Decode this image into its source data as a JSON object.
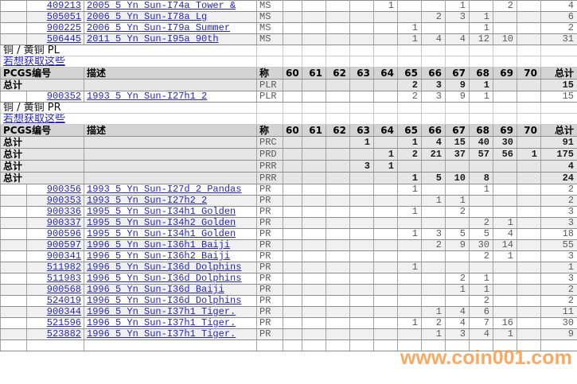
{
  "columns": {
    "pcgs_label": "PCGS编号",
    "desc_label": "描述",
    "grade_label": "称",
    "grades": [
      "60",
      "61",
      "62",
      "63",
      "64",
      "65",
      "66",
      "67",
      "68",
      "69",
      "70"
    ],
    "total_label": "总计"
  },
  "labels": {
    "subtotal": "总计"
  },
  "watermark": {
    "text": "www.coin001.com",
    "color": "#f79b4a"
  },
  "colors": {
    "link": "#2323cc",
    "header_bg": "#d4d4d4",
    "subtotal_bg": "#e6e6e6",
    "row_shade": "#f0f0f0"
  },
  "rows": [
    {
      "type": "data",
      "shade": false,
      "pcgs": "409213",
      "desc": "2005 5 Yn Sun-I74a Tower &",
      "grade": "MS",
      "vals": {
        "64": "1",
        "67": "1",
        "69": "2"
      },
      "total": "4"
    },
    {
      "type": "data",
      "shade": true,
      "pcgs": "505051",
      "desc": "2006 5 Yn Sun-I78a Lg",
      "grade": "MS",
      "vals": {
        "66": "2",
        "67": "3",
        "68": "1"
      },
      "total": "6"
    },
    {
      "type": "data",
      "shade": false,
      "pcgs": "900225",
      "desc": "2006 5 Yn Sun-I79a Summer",
      "grade": "MS",
      "vals": {
        "65": "1",
        "68": "1"
      },
      "total": "2"
    },
    {
      "type": "data",
      "shade": true,
      "pcgs": "506445",
      "desc": "2011 5 Yn Sun-I95a 90th",
      "grade": "MS",
      "vals": {
        "65": "1",
        "66": "4",
        "67": "4",
        "68": "12",
        "69": "10"
      },
      "total": "31"
    },
    {
      "type": "title",
      "text": "铜 / 黄铜  PL"
    },
    {
      "type": "link",
      "text": "若想获取这些"
    },
    {
      "type": "header"
    },
    {
      "type": "subtotal",
      "grade": "PLR",
      "vals": {
        "65": "2",
        "66": "3",
        "67": "9",
        "68": "1"
      },
      "total": "15"
    },
    {
      "type": "data",
      "shade": false,
      "pcgs": "900352",
      "desc": "1993 5 Yn Sun-I27h1 2",
      "grade": "PLR",
      "vals": {
        "65": "2",
        "66": "3",
        "67": "9",
        "68": "1"
      },
      "total": "15"
    },
    {
      "type": "title",
      "text": "铜 / 黄铜  PR"
    },
    {
      "type": "link",
      "text": "若想获取这些"
    },
    {
      "type": "header"
    },
    {
      "type": "subtotal",
      "grade": "PRC",
      "vals": {
        "63": "1",
        "65": "1",
        "66": "4",
        "67": "15",
        "68": "40",
        "69": "30"
      },
      "total": "91"
    },
    {
      "type": "subtotal",
      "grade": "PRD",
      "vals": {
        "64": "1",
        "65": "2",
        "66": "21",
        "67": "37",
        "68": "57",
        "69": "56",
        "70": "1"
      },
      "total": "175"
    },
    {
      "type": "subtotal",
      "grade": "PRR",
      "vals": {
        "63": "3",
        "64": "1"
      },
      "total": "4"
    },
    {
      "type": "subtotal",
      "grade": "PRR",
      "vals": {
        "65": "1",
        "66": "5",
        "67": "10",
        "68": "8"
      },
      "total": "24"
    },
    {
      "type": "data",
      "shade": false,
      "pcgs": "900356",
      "desc": "1993 5 Yn Sun-I27d 2 Pandas",
      "grade": "PR",
      "vals": {
        "65": "1",
        "68": "1"
      },
      "total": "2"
    },
    {
      "type": "data",
      "shade": true,
      "pcgs": "900353",
      "desc": "1993 5 Yn Sun-I27h2 2",
      "grade": "PR",
      "vals": {
        "66": "1",
        "67": "1"
      },
      "total": "2"
    },
    {
      "type": "data",
      "shade": false,
      "pcgs": "900336",
      "desc": "1995 5 Yn Sun-I34h1 Golden",
      "grade": "PR",
      "vals": {
        "65": "1",
        "67": "2"
      },
      "total": "3"
    },
    {
      "type": "data",
      "shade": true,
      "pcgs": "900337",
      "desc": "1995 5 Yn Sun-I34h2 Golden",
      "grade": "PR",
      "vals": {
        "68": "2",
        "69": "1"
      },
      "total": "3"
    },
    {
      "type": "data",
      "shade": false,
      "pcgs": "900596",
      "desc": "1995 5 Yn Sun-I34h1 Golden",
      "grade": "PR",
      "vals": {
        "65": "1",
        "66": "3",
        "67": "5",
        "68": "5",
        "69": "4"
      },
      "total": "18"
    },
    {
      "type": "data",
      "shade": true,
      "pcgs": "900597",
      "desc": "1996 5 Yn Sun-I36h1 Baiji",
      "grade": "PR",
      "vals": {
        "66": "2",
        "67": "9",
        "68": "30",
        "69": "14"
      },
      "total": "55"
    },
    {
      "type": "data",
      "shade": false,
      "pcgs": "900341",
      "desc": "1996 5 Yn Sun-I36h2 Baiji",
      "grade": "PR",
      "vals": {
        "68": "2",
        "69": "1"
      },
      "total": "3"
    },
    {
      "type": "data",
      "shade": true,
      "pcgs": "511982",
      "desc": "1996 5 Yn Sun-I36d Dolphins",
      "grade": "PR",
      "vals": {
        "65": "1"
      },
      "total": "1"
    },
    {
      "type": "data",
      "shade": false,
      "pcgs": "511983",
      "desc": "1996 5 Yn Sun-I36d Dolphins",
      "grade": "PR",
      "vals": {
        "67": "2",
        "68": "1"
      },
      "total": "3"
    },
    {
      "type": "data",
      "shade": true,
      "pcgs": "900568",
      "desc": "1996 5 Yn Sun-I36d Baiji",
      "grade": "PR",
      "vals": {
        "67": "1",
        "68": "1"
      },
      "total": "2"
    },
    {
      "type": "data",
      "shade": false,
      "pcgs": "524019",
      "desc": "1996 5 Yn Sun-I36d Dolphins",
      "grade": "PR",
      "vals": {
        "68": "2"
      },
      "total": "2"
    },
    {
      "type": "data",
      "shade": true,
      "pcgs": "900344",
      "desc": "1996 5 Yn Sun-I37h1 Tiger.",
      "grade": "PR",
      "vals": {
        "66": "1",
        "67": "4",
        "68": "6"
      },
      "total": "11"
    },
    {
      "type": "data",
      "shade": false,
      "pcgs": "521596",
      "desc": "1996 5 Yn Sun-I37h1 Tiger.",
      "grade": "PR",
      "vals": {
        "65": "1",
        "66": "2",
        "67": "4",
        "68": "7",
        "69": "16"
      },
      "total": "30"
    },
    {
      "type": "data",
      "shade": true,
      "pcgs": "523882",
      "desc": "1996 5 Yn Sun-I37h1 Tiger.",
      "grade": "PR",
      "vals": {
        "66": "1",
        "67": "3",
        "68": "4",
        "69": "1"
      },
      "total": "9"
    },
    {
      "type": "empty",
      "shade": false
    }
  ]
}
